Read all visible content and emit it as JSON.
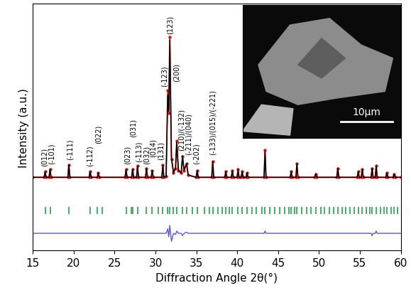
{
  "chart_data": {
    "type": "line",
    "x_label": "Diffraction Angle 2θ(°)",
    "y_label": "Intensity (a.u.)",
    "xlim": [
      15,
      60
    ],
    "xticks": [
      15,
      20,
      25,
      30,
      35,
      40,
      45,
      50,
      55,
      60
    ],
    "ylim": [
      0,
      108
    ],
    "tick_labels": "x",
    "x": [
      15.0,
      16.38,
      16.5,
      16.62,
      16.98,
      17.1,
      17.22,
      19.28,
      19.4,
      19.52,
      21.88,
      22.0,
      22.12,
      22.88,
      23.0,
      23.12,
      26.28,
      26.4,
      26.52,
      27.08,
      27.2,
      27.32,
      27.68,
      27.8,
      27.92,
      28.78,
      28.9,
      29.02,
      29.48,
      29.6,
      29.72,
      30.78,
      30.9,
      31.02,
      31.3,
      31.5,
      31.62,
      31.75,
      31.95,
      32.2,
      32.45,
      32.6,
      32.8,
      33.15,
      33.3,
      33.5,
      33.8,
      34.0,
      34.98,
      35.1,
      35.22,
      36.88,
      37.0,
      37.12,
      38.48,
      38.6,
      38.72,
      39.28,
      39.4,
      39.52,
      39.98,
      40.1,
      40.22,
      40.48,
      40.6,
      40.72,
      41.08,
      41.2,
      41.32,
      43.28,
      43.4,
      43.52,
      46.48,
      46.6,
      46.72,
      47.18,
      47.3,
      47.42,
      49.48,
      49.6,
      49.72,
      52.18,
      52.3,
      52.42,
      54.68,
      54.8,
      54.92,
      55.18,
      55.3,
      55.42,
      56.38,
      56.5,
      56.62,
      56.88,
      57.0,
      57.12,
      58.18,
      58.3,
      58.42,
      59.08,
      59.2,
      59.32,
      60.0
    ],
    "series": [
      {
        "color": "#c0201c",
        "marker": "circle",
        "line_style": "solid",
        "values": [
          32,
          32,
          34.5,
          32,
          32,
          35.5,
          32,
          32,
          37.5,
          32,
          32,
          34.5,
          32,
          32,
          34,
          32,
          32,
          35.5,
          32,
          32,
          35.5,
          32,
          32,
          37,
          32,
          32,
          36,
          32,
          32,
          35,
          32,
          32,
          37.5,
          32,
          32.5,
          70,
          60,
          93.5,
          40,
          34,
          36,
          48,
          35,
          34,
          41,
          35,
          38,
          33,
          32,
          35,
          32,
          32,
          39,
          32,
          32,
          34.5,
          32,
          32,
          35,
          32,
          32,
          35.5,
          32,
          32,
          34.5,
          32,
          32,
          34,
          32,
          32,
          44,
          32,
          32,
          34.5,
          32,
          32,
          38,
          32,
          32,
          33.5,
          32,
          32,
          36,
          32,
          32,
          34.5,
          32,
          32,
          35.5,
          32,
          32,
          36,
          32,
          32,
          37,
          32,
          32,
          34,
          32,
          32,
          33.5,
          32,
          32
        ]
      },
      {
        "color": "#000000",
        "marker": "none",
        "line_style": "solid",
        "values": [
          32,
          32,
          34.5,
          32,
          32,
          35.5,
          32,
          32,
          37.5,
          32,
          32,
          34.5,
          32,
          32,
          34,
          32,
          32,
          35.5,
          32,
          32,
          35.5,
          32,
          32,
          37,
          32,
          32,
          36,
          32,
          32,
          35,
          32,
          32,
          37.5,
          32,
          32.5,
          68,
          61,
          92,
          41,
          34,
          36,
          47.5,
          35,
          34,
          41.5,
          35,
          38,
          33,
          32,
          35,
          32,
          32,
          39,
          32,
          32,
          34.5,
          32,
          32,
          35,
          32,
          32,
          35.5,
          32,
          32,
          34.5,
          32,
          32,
          34,
          32,
          32,
          43.5,
          32,
          32,
          34.5,
          32,
          32,
          38,
          32,
          32,
          33.5,
          32,
          32,
          36,
          32,
          32,
          34.5,
          32,
          32,
          35.5,
          32,
          32,
          36,
          32,
          32,
          37,
          32,
          32,
          34,
          32,
          32,
          33.5,
          32,
          32
        ]
      },
      {
        "color": "#5b5bd6",
        "marker": "none",
        "line_style": "solid",
        "values": [
          7.5,
          7.5,
          7.5,
          7.5,
          7.5,
          7.5,
          7.5,
          7.5,
          7.5,
          7.5,
          7.5,
          7.5,
          7.5,
          7.5,
          7.5,
          7.5,
          7.5,
          7.5,
          7.5,
          7.5,
          7.5,
          7.5,
          7.5,
          7.5,
          7.5,
          7.5,
          7.5,
          7.5,
          7.5,
          7.5,
          7.5,
          7.5,
          7.5,
          7.5,
          7.5,
          9.5,
          6,
          11,
          4,
          7.5,
          7,
          8.5,
          7.5,
          7.5,
          6.5,
          7.5,
          8,
          7.5,
          7.5,
          7.5,
          7.5,
          7.5,
          7.5,
          7.5,
          7.5,
          7.5,
          7.5,
          7.5,
          7.5,
          7.5,
          7.5,
          7.5,
          7.5,
          7.5,
          7.5,
          7.5,
          7.5,
          7.5,
          7.5,
          7.5,
          8.5,
          7.5,
          7.5,
          7.5,
          7.5,
          7.5,
          7.5,
          7.5,
          7.5,
          7.5,
          7.5,
          7.5,
          7.5,
          7.5,
          7.5,
          7.5,
          7.5,
          7.5,
          7.5,
          7.5,
          7.5,
          6.5,
          7.5,
          7.5,
          8.5,
          7.5,
          7.5,
          7.5,
          7.5,
          7.5,
          7.5,
          7.5,
          7.5
        ]
      }
    ],
    "reflections": [
      16.5,
      17.1,
      19.4,
      22.0,
      22.9,
      23.5,
      26.4,
      27.0,
      27.2,
      27.8,
      28.9,
      29.6,
      30.3,
      30.9,
      31.5,
      31.75,
      32.2,
      32.6,
      33.3,
      33.8,
      34.5,
      35.1,
      36.0,
      36.6,
      37.0,
      37.6,
      38.2,
      38.6,
      39.0,
      39.4,
      40.1,
      40.6,
      41.2,
      41.8,
      42.3,
      43.0,
      43.4,
      44.0,
      44.6,
      45.2,
      45.8,
      46.3,
      46.6,
      47.0,
      47.3,
      47.9,
      48.5,
      49.0,
      49.6,
      50.2,
      50.7,
      51.3,
      51.8,
      52.3,
      52.8,
      53.3,
      53.8,
      54.3,
      54.8,
      55.3,
      55.8,
      56.2,
      56.5,
      57.0,
      57.5,
      58.0,
      58.3,
      58.8,
      59.2,
      59.6
    ],
    "reflection_range": [
      16,
      19
    ],
    "reflection_color": "#2e9e4f",
    "annotations": [
      {
        "text": "(012)",
        "x": 16.4,
        "y": 37
      },
      {
        "text": "(-101)",
        "x": 17.3,
        "y": 38
      },
      {
        "text": "(-111)",
        "x": 19.5,
        "y": 40
      },
      {
        "text": "(-112)",
        "x": 22.0,
        "y": 37
      },
      {
        "text": "(022)",
        "x": 23.0,
        "y": 47
      },
      {
        "text": "(023)",
        "x": 26.6,
        "y": 38
      },
      {
        "text": "(031)",
        "x": 27.3,
        "y": 50
      },
      {
        "text": "(-113)",
        "x": 27.95,
        "y": 39
      },
      {
        "text": "(032)",
        "x": 28.9,
        "y": 38
      },
      {
        "text": "(014)",
        "x": 29.7,
        "y": 41
      },
      {
        "text": "(131)",
        "x": 30.65,
        "y": 40
      },
      {
        "text": "(-123)",
        "x": 31.1,
        "y": 72
      },
      {
        "text": "(123)",
        "x": 31.8,
        "y": 95
      },
      {
        "text": "(200)",
        "x": 32.55,
        "y": 74
      },
      {
        "text": "(210)/(-132)",
        "x": 33.2,
        "y": 44
      },
      {
        "text": "(-211)/(040)",
        "x": 34.05,
        "y": 42
      },
      {
        "text": "(-202)",
        "x": 35.0,
        "y": 38
      },
      {
        "text": "(-133)/(015)/(-221)",
        "x": 37.0,
        "y": 42
      }
    ],
    "inset": {
      "scale_bar": "10μm"
    }
  }
}
